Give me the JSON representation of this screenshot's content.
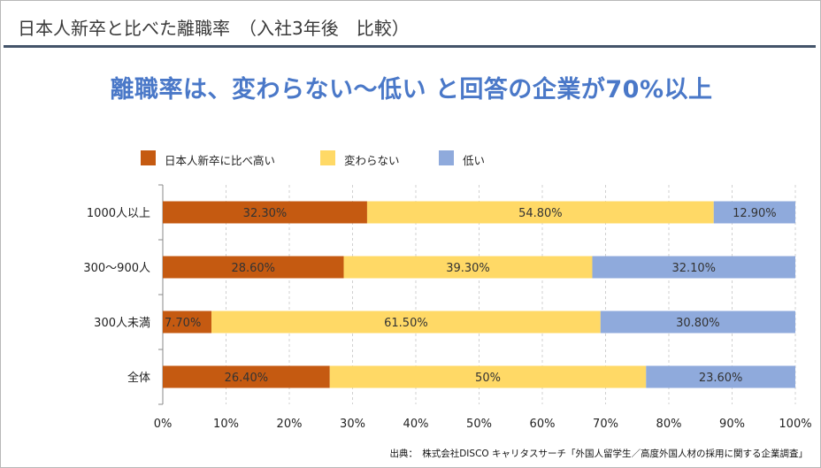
{
  "header": {
    "title": "日本人新卒と比べた離職率　（入社3年後　比較）"
  },
  "headline": "離職率は、変わらない～低い と回答の企業が70%以上",
  "colors": {
    "higher": "#c55a11",
    "same": "#ffd966",
    "lower": "#8faadc",
    "headline": "#4a78c8",
    "header_rule": "#44546a"
  },
  "legend": [
    {
      "label": "日本人新卒に比べ高い",
      "color": "#c55a11"
    },
    {
      "label": "変わらない",
      "color": "#ffd966"
    },
    {
      "label": "低い",
      "color": "#8faadc"
    }
  ],
  "chart_data": {
    "type": "bar",
    "orientation": "horizontal",
    "stacked": true,
    "categories": [
      "1000人以上",
      "300～900人",
      "300人未満",
      "全体"
    ],
    "series": [
      {
        "name": "日本人新卒に比べ高い",
        "values": [
          32.3,
          28.6,
          7.7,
          26.4
        ],
        "labels": [
          "32.30%",
          "28.60%",
          "7.70%",
          "26.40%"
        ],
        "color": "#c55a11"
      },
      {
        "name": "変わらない",
        "values": [
          54.8,
          39.3,
          61.5,
          50
        ],
        "labels": [
          "54.80%",
          "39.30%",
          "61.50%",
          "50%"
        ],
        "color": "#ffd966"
      },
      {
        "name": "低い",
        "values": [
          12.9,
          32.1,
          30.8,
          23.6
        ],
        "labels": [
          "12.90%",
          "32.10%",
          "30.80%",
          "23.60%"
        ],
        "color": "#8faadc"
      }
    ],
    "xlim": [
      0,
      100
    ],
    "xticks": [
      "0%",
      "10%",
      "20%",
      "30%",
      "40%",
      "50%",
      "60%",
      "70%",
      "80%",
      "90%",
      "100%"
    ],
    "grid": true,
    "legend_position": "top-left"
  },
  "source": "出典：　株式会社DISCO キャリタスサーチ「外国人留学生／高度外国人材の採用に関する企業調査」"
}
